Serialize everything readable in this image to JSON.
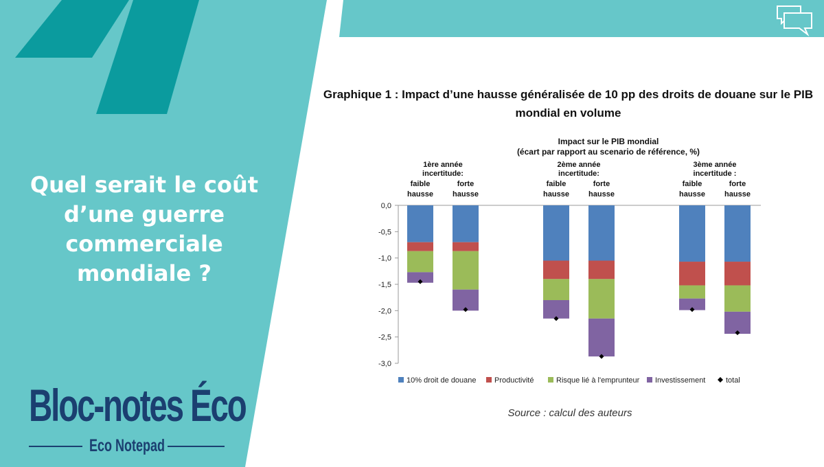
{
  "left_panel": {
    "question_lines": [
      "Quel serait le coût",
      "d’une guerre",
      "commerciale",
      "mondiale ?"
    ],
    "brand_title": "Bloc-notes Éco",
    "brand_subtitle": "Eco Notepad"
  },
  "colors": {
    "teal": "#66c7c9",
    "dark_teal": "#0b9b9e",
    "navy": "#1b3f70"
  },
  "icons": [
    "quote-marks-icon",
    "speech-bubbles-icon"
  ],
  "chart_heading_lines": [
    "Graphique 1 : Impact d’une hausse généralisée de 10 pp des droits de douane sur le PIB",
    "mondial en volume"
  ],
  "source": "Source : calcul des auteurs",
  "chart_data": {
    "type": "bar",
    "stacked": true,
    "title": [
      "Impact sur le PIB mondial",
      "(écart par rapport au scenario de référence, %)"
    ],
    "groups": [
      {
        "header": [
          "1ère année",
          "incertitude:"
        ],
        "bars": [
          [
            "faible",
            "hausse"
          ],
          [
            "forte",
            "hausse"
          ]
        ]
      },
      {
        "header": [
          "2ème année",
          "incertitude:"
        ],
        "bars": [
          [
            "faible",
            "hausse"
          ],
          [
            "forte",
            "hausse"
          ]
        ]
      },
      {
        "header": [
          "3ème année",
          "incertitude :"
        ],
        "bars": [
          [
            "faible",
            "hausse"
          ],
          [
            "forte",
            "hausse"
          ]
        ]
      }
    ],
    "ylim": [
      -3.0,
      0.0
    ],
    "yticks": [
      0.0,
      -0.5,
      -1.0,
      -1.5,
      -2.0,
      -2.5,
      -3.0
    ],
    "ytick_labels": [
      "0,0",
      "-0,5",
      "-1,0",
      "-1,5",
      "-2,0",
      "-2,5",
      "-3,0"
    ],
    "series": [
      {
        "name": "10% droit de douane",
        "color": "#4f81bd",
        "values": [
          -0.7,
          -0.7,
          -1.05,
          -1.05,
          -1.07,
          -1.07
        ]
      },
      {
        "name": "Productivité",
        "color": "#c0504d",
        "values": [
          -0.17,
          -0.17,
          -0.35,
          -0.35,
          -0.45,
          -0.45
        ]
      },
      {
        "name": "Risque lié à l'emprunteur",
        "color": "#9bbb59",
        "values": [
          -0.4,
          -0.73,
          -0.4,
          -0.75,
          -0.25,
          -0.5
        ]
      },
      {
        "name": "Investissement",
        "color": "#8064a2",
        "values": [
          -0.2,
          -0.4,
          -0.35,
          -0.72,
          -0.22,
          -0.42
        ]
      }
    ],
    "total": {
      "name": "total",
      "color": "#000000",
      "values": [
        -1.45,
        -1.98,
        -2.15,
        -2.87,
        -1.98,
        -2.42
      ]
    }
  }
}
